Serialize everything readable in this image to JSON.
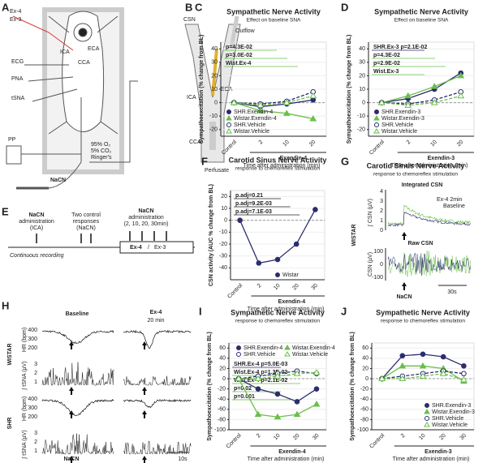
{
  "panel_letters": [
    "A",
    "B",
    "C",
    "D",
    "E",
    "F",
    "G",
    "H",
    "I",
    "J"
  ],
  "panels": {
    "A": {
      "ex4": "Ex-4",
      "ex3": "Ex-3",
      "ecg": "ECG",
      "pna": "PNA",
      "tsna": "tSNA",
      "pp": "PP",
      "nacn": "NaCN",
      "ica": "ICA",
      "eca": "ECA",
      "cca": "CCA",
      "gas": [
        "95% O₂",
        "5% CO₂",
        "Ringer's"
      ]
    },
    "B": {
      "csn": "CSN",
      "outflow": "Outflow",
      "ica": "ICA",
      "eca": "ECA",
      "cca": "CCA",
      "perfusate": "Perfusate"
    },
    "E": {
      "step1": [
        "NaCN",
        "administration",
        "(ICA)"
      ],
      "step2": [
        "Two control",
        "responses",
        "(NaCN)"
      ],
      "step3": [
        "NaCN",
        "administration",
        "(2, 10, 20, 30min)"
      ],
      "ex4": "Ex-4",
      "sep": "/",
      "ex3": "Ex-3",
      "recording": "Continuous recording"
    },
    "G": {
      "title": "Carotid Sinus Nerve Activity",
      "subtitle": "response to chemoreflex stimulation",
      "group": "WISTAR",
      "integrated": "Integrated CSN",
      "integrated_axis": "∫ CSN (µV)",
      "integrated_ticks": [
        "4",
        "3",
        "2",
        "1",
        "0"
      ],
      "raw": "Raw CSN",
      "raw_axis": "CSN (µV)",
      "raw_ticks": [
        "100",
        "0",
        "-100"
      ],
      "legend": [
        "Ex-4 2min",
        "Baseline"
      ],
      "stimulus": "NaCN",
      "scale": "30s"
    },
    "H": {
      "columns": [
        "Baseline",
        "Ex-4",
        "20 min"
      ],
      "groups": [
        "WISTAR",
        "SHR"
      ],
      "hr_axis": "HR (bpm)",
      "tsna_axis": "∫ tSNA (µV)",
      "hr_ticks": [
        "400",
        "300",
        "200"
      ],
      "tsna_ticks": [
        "3",
        "2",
        "1"
      ],
      "stimulus": "NaCN",
      "scale": "10s"
    }
  },
  "chart_data": [
    {
      "type": "line",
      "title": "Sympathetic Nerve Activity",
      "subtitle": "Effect on baseline SNA",
      "ylabel": "Sympathoexcitation (% change from BL)",
      "xlabel": "Exendin-4",
      "xsublabel": "Time after administration (min)",
      "categories": [
        "Control",
        "2",
        "10",
        "20"
      ],
      "ylim": [
        -25,
        45
      ],
      "yticks": [
        -20,
        -10,
        0,
        10,
        20,
        30,
        40
      ],
      "legend": "lower left",
      "annotations": [
        {
          "text": "p=4.3E-02",
          "color": "#6abf4b"
        },
        {
          "text": "p=3.0E-02",
          "color": "#6abf4b"
        },
        {
          "text": "Wist.Ex-4",
          "color": "#6abf4b"
        }
      ],
      "series": [
        {
          "name": "SHR.Exendin-4",
          "color": "#2b2d6e",
          "marker": "circle",
          "filled": true,
          "dashed": false,
          "values": [
            0,
            -3,
            -1,
            2
          ]
        },
        {
          "name": "Wistar.Exendin-4",
          "color": "#6abf4b",
          "marker": "triangle",
          "filled": true,
          "dashed": false,
          "values": [
            0,
            -6,
            -8,
            -12
          ]
        },
        {
          "name": "SHR.Vehicle",
          "color": "#2b2d6e",
          "marker": "circle",
          "filled": false,
          "dashed": true,
          "values": [
            0,
            -1,
            1,
            8
          ]
        },
        {
          "name": "Wistar.Vehicle",
          "color": "#6abf4b",
          "marker": "triangle",
          "filled": false,
          "dashed": true,
          "values": [
            0,
            -2,
            0,
            5
          ]
        }
      ]
    },
    {
      "type": "line",
      "title": "Sympathetic Nerve Activity",
      "subtitle": "Effect on baseline SNA",
      "ylabel": "Sympathoexcitation (% change from BL)",
      "xlabel": "Exendin-3",
      "xsublabel": "Time after administration (min)",
      "categories": [
        "Control",
        "2",
        "10",
        "20"
      ],
      "ylim": [
        -25,
        45
      ],
      "yticks": [
        -20,
        -10,
        0,
        10,
        20,
        30,
        40
      ],
      "legend": "lower left",
      "annotations": [
        {
          "text": "SHR.Ex-3  p=2.1E-02",
          "color": "#2b2d6e"
        },
        {
          "text": "p=4.3E-02",
          "color": "#6abf4b"
        },
        {
          "text": "p=2.9E-02",
          "color": "#6abf4b"
        },
        {
          "text": "Wist.Ex-3",
          "color": "#6abf4b"
        }
      ],
      "series": [
        {
          "name": "SHR.Exendin-3",
          "color": "#2b2d6e",
          "marker": "circle",
          "filled": true,
          "dashed": false,
          "values": [
            0,
            3,
            10,
            22
          ]
        },
        {
          "name": "Wistar.Exendin-3",
          "color": "#6abf4b",
          "marker": "triangle",
          "filled": true,
          "dashed": false,
          "values": [
            0,
            5,
            12,
            20
          ]
        },
        {
          "name": "SHR.Vehicle",
          "color": "#2b2d6e",
          "marker": "circle",
          "filled": false,
          "dashed": true,
          "values": [
            0,
            -1,
            2,
            8
          ]
        },
        {
          "name": "Wistar.Vehicle",
          "color": "#6abf4b",
          "marker": "triangle",
          "filled": false,
          "dashed": true,
          "values": [
            0,
            -2,
            0,
            5
          ]
        }
      ]
    },
    {
      "type": "line",
      "title": "Carotid Sinus Nerve Activity",
      "subtitle": "response to chemoreflex stimulation",
      "ylabel": "CSN activity (AUC % change from BL)",
      "xlabel": "Exendin-4",
      "xsublabel": "Time after administration (min)",
      "categories": [
        "Control",
        "2",
        "10",
        "20",
        "30"
      ],
      "ylim": [
        -50,
        25
      ],
      "yticks": [
        -40,
        -30,
        -20,
        -10,
        0,
        10,
        20
      ],
      "legend": "lower right",
      "annotations": [
        {
          "text": "p.adj=0.21",
          "color": "#222"
        },
        {
          "text": "p.adj=9.2E-03",
          "color": "#222"
        },
        {
          "text": "p.adj=7.1E-03",
          "color": "#222"
        }
      ],
      "series": [
        {
          "name": "Wistar",
          "color": "#2b2d6e",
          "marker": "circle",
          "filled": true,
          "dashed": false,
          "values": [
            0,
            -36,
            -33,
            -20,
            9
          ]
        }
      ]
    },
    {
      "type": "line",
      "title": "Sympathetic Nerve Activity",
      "subtitle": "response to chemoreflex stimulation",
      "ylabel": "Sympathoexcitation (% change from BL)",
      "xlabel": "Exendin-4",
      "xsublabel": "Time after administration (min)",
      "categories": [
        "Control",
        "2",
        "10",
        "20",
        "30"
      ],
      "ylim": [
        -100,
        70
      ],
      "yticks": [
        -100,
        -80,
        -60,
        -40,
        -20,
        0,
        20,
        40,
        60
      ],
      "legend": "upper center",
      "annotations": [
        {
          "text": "SHR.Ex-4  p=5.0E-03",
          "color": "#2b2d6e"
        },
        {
          "text": "Wist.Ex-4  p=1.3E-02",
          "color": "#6abf4b"
        },
        {
          "text": "Wist.Ex-4  p=2.1E-02",
          "color": "#6abf4b"
        },
        {
          "text": "p=0.02",
          "color": "#6abf4b"
        },
        {
          "text": "p=0.001",
          "color": "#6abf4b"
        }
      ],
      "series": [
        {
          "name": "SHR.Exendin-4",
          "color": "#2b2d6e",
          "marker": "circle",
          "filled": true,
          "dashed": false,
          "values": [
            0,
            -20,
            -30,
            -45,
            -20
          ]
        },
        {
          "name": "Wistar.Exendin-4",
          "color": "#6abf4b",
          "marker": "triangle",
          "filled": true,
          "dashed": false,
          "values": [
            0,
            -70,
            -75,
            -70,
            -50
          ]
        },
        {
          "name": "SHR.Vehicle",
          "color": "#2b2d6e",
          "marker": "circle",
          "filled": false,
          "dashed": true,
          "values": [
            0,
            5,
            10,
            15,
            10
          ]
        },
        {
          "name": "Wistar.Vehicle",
          "color": "#6abf4b",
          "marker": "triangle",
          "filled": false,
          "dashed": true,
          "values": [
            0,
            0,
            5,
            10,
            12
          ]
        }
      ]
    },
    {
      "type": "line",
      "title": "Sympathetic Nerve Activity",
      "subtitle": "response to chemoreflex stimulation",
      "ylabel": "Sympathoexcitation (% change from BL)",
      "xlabel": "Exendin-3",
      "xsublabel": "Time after administration (min)",
      "categories": [
        "Control",
        "2",
        "10",
        "20",
        "30"
      ],
      "ylim": [
        -100,
        70
      ],
      "yticks": [
        -100,
        -80,
        -60,
        -40,
        -20,
        0,
        20,
        40,
        60
      ],
      "legend": "lower right",
      "annotations": [],
      "series": [
        {
          "name": "SHR.Exendin-3",
          "color": "#2b2d6e",
          "marker": "circle",
          "filled": true,
          "dashed": false,
          "values": [
            0,
            45,
            48,
            43,
            25
          ]
        },
        {
          "name": "Wistar.Exendin-3",
          "color": "#6abf4b",
          "marker": "triangle",
          "filled": true,
          "dashed": false,
          "values": [
            0,
            25,
            25,
            20,
            -5
          ]
        },
        {
          "name": "SHR.Vehicle",
          "color": "#2b2d6e",
          "marker": "circle",
          "filled": false,
          "dashed": true,
          "values": [
            0,
            5,
            10,
            15,
            10
          ]
        },
        {
          "name": "Wistar.Vehicle",
          "color": "#6abf4b",
          "marker": "triangle",
          "filled": false,
          "dashed": true,
          "values": [
            0,
            0,
            5,
            10,
            -2
          ]
        }
      ]
    }
  ]
}
